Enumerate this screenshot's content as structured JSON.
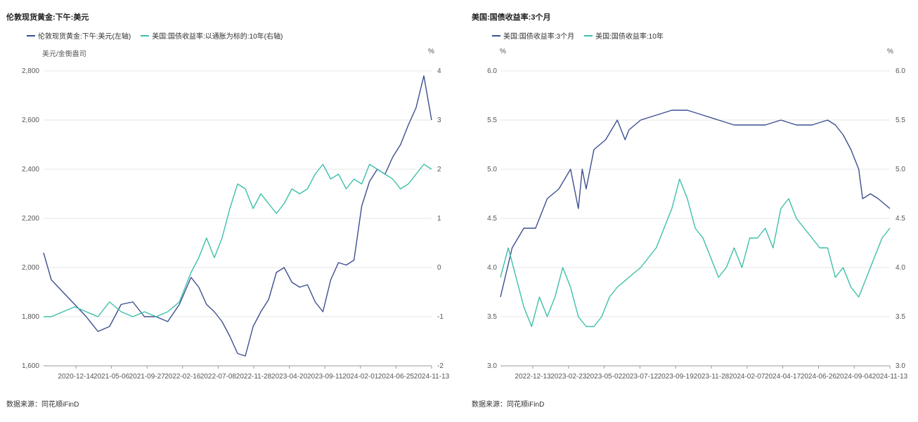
{
  "chart_data": [
    {
      "type": "line",
      "title": "伦敦现货黄金:下午:美元",
      "left_unit": "美元/金衡盎司",
      "right_unit": "%",
      "ylim_left": [
        1600,
        2800
      ],
      "ylim_right": [
        -2,
        4
      ],
      "yticks_left": [
        "1,600",
        "1,800",
        "2,000",
        "2,200",
        "2,400",
        "2,600",
        "2,800"
      ],
      "yticks_right": [
        "-2",
        "-1",
        "0",
        "1",
        "2",
        "3",
        "4"
      ],
      "x_ticks": [
        "2020-12-14",
        "2021-05-06",
        "2021-09-27",
        "2022-02-16",
        "2022-07-08",
        "2022-11-28",
        "2023-04-20",
        "2023-09-11",
        "2024-02-01",
        "2024-06-25",
        "2024-11-13"
      ],
      "source": "数据来源：同花顺iFinD",
      "series": [
        {
          "name": "伦敦现货黄金:下午:美元(左轴)",
          "axis": "left",
          "color": "#3d4f8f",
          "x": [
            0,
            0.02,
            0.05,
            0.08,
            0.11,
            0.14,
            0.17,
            0.2,
            0.23,
            0.26,
            0.29,
            0.32,
            0.35,
            0.38,
            0.4,
            0.42,
            0.44,
            0.46,
            0.48,
            0.5,
            0.52,
            0.54,
            0.56,
            0.58,
            0.6,
            0.62,
            0.64,
            0.66,
            0.68,
            0.7,
            0.72,
            0.74,
            0.76,
            0.78,
            0.8,
            0.82,
            0.84,
            0.86,
            0.88,
            0.9,
            0.92,
            0.94,
            0.96,
            0.98,
            1.0
          ],
          "values": [
            2060,
            1950,
            1900,
            1850,
            1800,
            1740,
            1760,
            1850,
            1860,
            1800,
            1800,
            1780,
            1850,
            1960,
            1920,
            1850,
            1820,
            1780,
            1720,
            1650,
            1640,
            1760,
            1820,
            1870,
            1980,
            2000,
            1940,
            1920,
            1930,
            1860,
            1820,
            1950,
            2020,
            2010,
            2030,
            2250,
            2350,
            2400,
            2380,
            2450,
            2500,
            2580,
            2650,
            2780,
            2600
          ]
        },
        {
          "name": "美国:国债收益率:以通胀为标的:10年(右轴)",
          "axis": "right",
          "color": "#3dbfa8",
          "x": [
            0,
            0.02,
            0.05,
            0.08,
            0.11,
            0.14,
            0.17,
            0.2,
            0.23,
            0.26,
            0.29,
            0.32,
            0.35,
            0.38,
            0.4,
            0.42,
            0.44,
            0.46,
            0.48,
            0.5,
            0.52,
            0.54,
            0.56,
            0.58,
            0.6,
            0.62,
            0.64,
            0.66,
            0.68,
            0.7,
            0.72,
            0.74,
            0.76,
            0.78,
            0.8,
            0.82,
            0.84,
            0.86,
            0.88,
            0.9,
            0.92,
            0.94,
            0.96,
            0.98,
            1.0
          ],
          "values": [
            -1.0,
            -1.0,
            -0.9,
            -0.8,
            -0.9,
            -1.0,
            -0.7,
            -0.9,
            -1.0,
            -0.9,
            -1.0,
            -0.9,
            -0.7,
            -0.1,
            0.2,
            0.6,
            0.2,
            0.6,
            1.2,
            1.7,
            1.6,
            1.2,
            1.5,
            1.3,
            1.1,
            1.3,
            1.6,
            1.5,
            1.6,
            1.9,
            2.1,
            1.8,
            1.9,
            1.6,
            1.8,
            1.7,
            2.1,
            2.0,
            1.9,
            1.8,
            1.6,
            1.7,
            1.9,
            2.1,
            2.0
          ]
        }
      ]
    },
    {
      "type": "line",
      "title": "美国:国债收益率:3个月",
      "left_unit": "%",
      "right_unit": "%",
      "ylim_left": [
        3.0,
        6.0
      ],
      "ylim_right": [
        3.0,
        6.0
      ],
      "yticks_left": [
        "3.0",
        "3.5",
        "4.0",
        "4.5",
        "5.0",
        "5.5",
        "6.0"
      ],
      "yticks_right": [
        "3.0",
        "3.5",
        "4.0",
        "4.5",
        "5.0",
        "5.5",
        "6.0"
      ],
      "x_ticks": [
        "2022-12-13",
        "2023-02-23",
        "2023-05-02",
        "2023-07-12",
        "2023-09-19",
        "2023-11-28",
        "2024-02-07",
        "2024-04-17",
        "2024-06-26",
        "2024-09-04",
        "2024-11-13"
      ],
      "source": "数据来源：同花顺iFinD",
      "series": [
        {
          "name": "美国:国债收益率:3个月",
          "axis": "left",
          "color": "#3d4f8f",
          "x": [
            0,
            0.03,
            0.06,
            0.09,
            0.12,
            0.15,
            0.18,
            0.2,
            0.21,
            0.22,
            0.24,
            0.27,
            0.3,
            0.32,
            0.33,
            0.36,
            0.4,
            0.44,
            0.48,
            0.52,
            0.56,
            0.6,
            0.64,
            0.68,
            0.72,
            0.76,
            0.8,
            0.84,
            0.86,
            0.88,
            0.9,
            0.92,
            0.93,
            0.95,
            0.97,
            1.0
          ],
          "values": [
            3.7,
            4.2,
            4.4,
            4.4,
            4.7,
            4.8,
            5.0,
            4.6,
            5.0,
            4.8,
            5.2,
            5.3,
            5.5,
            5.3,
            5.4,
            5.5,
            5.55,
            5.6,
            5.6,
            5.55,
            5.5,
            5.45,
            5.45,
            5.45,
            5.5,
            5.45,
            5.45,
            5.5,
            5.45,
            5.35,
            5.2,
            5.0,
            4.7,
            4.75,
            4.7,
            4.6
          ]
        },
        {
          "name": "美国:国债收益率:10年",
          "axis": "left",
          "color": "#3dbfa8",
          "x": [
            0,
            0.02,
            0.04,
            0.06,
            0.08,
            0.1,
            0.12,
            0.14,
            0.16,
            0.18,
            0.2,
            0.22,
            0.24,
            0.26,
            0.28,
            0.3,
            0.33,
            0.36,
            0.4,
            0.44,
            0.46,
            0.48,
            0.5,
            0.52,
            0.54,
            0.56,
            0.58,
            0.6,
            0.62,
            0.64,
            0.66,
            0.68,
            0.7,
            0.72,
            0.74,
            0.76,
            0.78,
            0.8,
            0.82,
            0.84,
            0.86,
            0.88,
            0.9,
            0.92,
            0.94,
            0.96,
            0.98,
            1.0
          ],
          "values": [
            3.9,
            4.2,
            3.9,
            3.6,
            3.4,
            3.7,
            3.5,
            3.7,
            4.0,
            3.8,
            3.5,
            3.4,
            3.4,
            3.5,
            3.7,
            3.8,
            3.9,
            4.0,
            4.2,
            4.6,
            4.9,
            4.7,
            4.4,
            4.3,
            4.1,
            3.9,
            4.0,
            4.2,
            4.0,
            4.3,
            4.3,
            4.4,
            4.2,
            4.6,
            4.7,
            4.5,
            4.4,
            4.3,
            4.2,
            4.2,
            3.9,
            4.0,
            3.8,
            3.7,
            3.9,
            4.1,
            4.3,
            4.4
          ]
        }
      ]
    }
  ]
}
